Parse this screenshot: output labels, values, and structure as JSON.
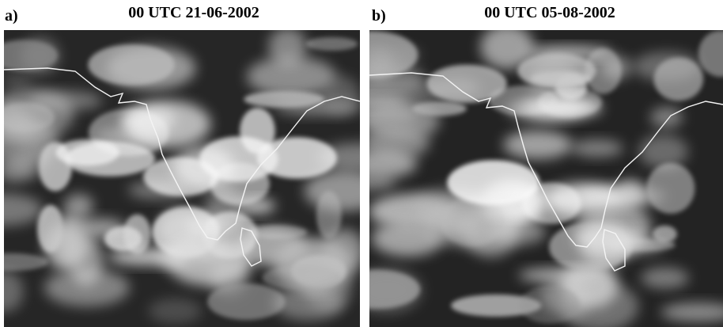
{
  "panels": [
    {
      "label": "a)",
      "title": "00 UTC 21-06-2002"
    },
    {
      "label": "b)",
      "title": "00 UTC 05-08-2002"
    }
  ]
}
